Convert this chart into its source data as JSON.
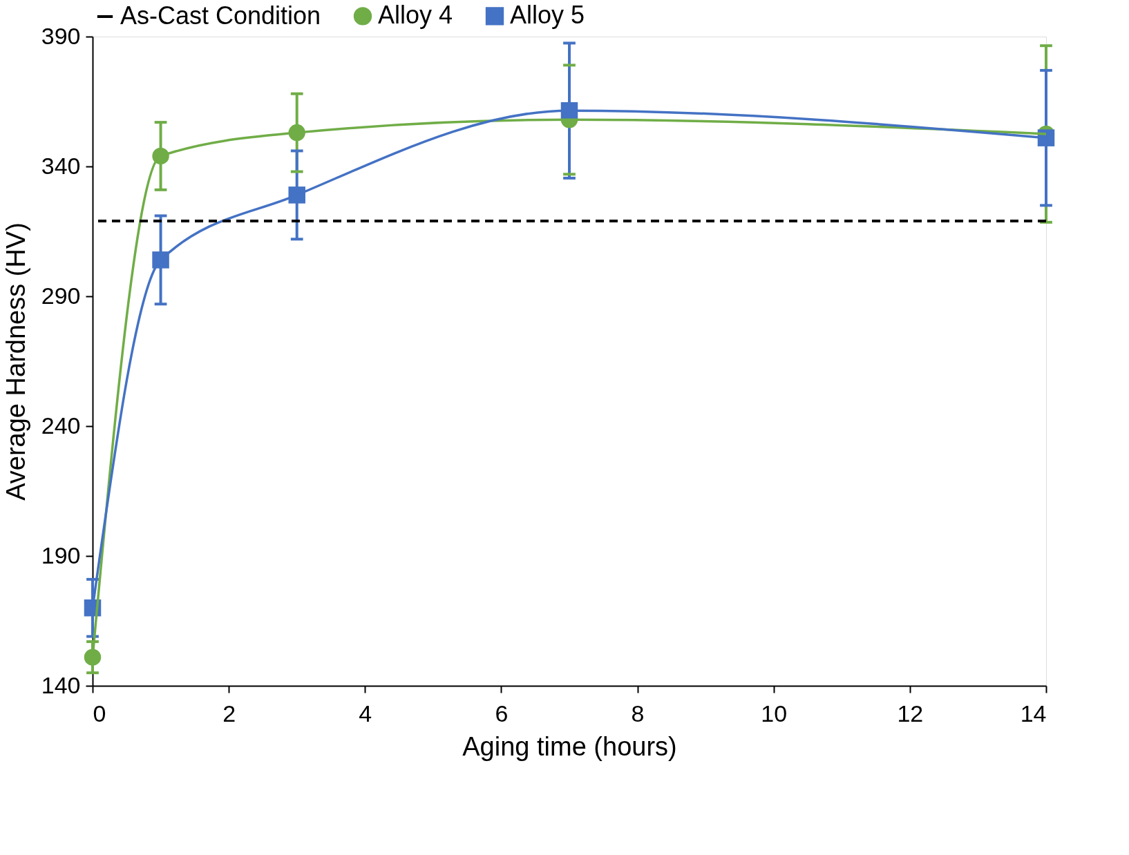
{
  "chart_data": {
    "type": "line",
    "xlabel": "Aging time (hours)",
    "ylabel": "Average Hardness (HV)",
    "x": [
      0,
      1,
      3,
      7,
      14
    ],
    "series": [
      {
        "name": "Alloy 4",
        "color": "#70ad47",
        "marker": "circle",
        "values": [
          151,
          344,
          353,
          358,
          352.5
        ],
        "errors": [
          6,
          13,
          15,
          21,
          34
        ]
      },
      {
        "name": "Alloy 5",
        "color": "#4472c4",
        "marker": "square",
        "values": [
          170,
          304,
          329,
          361.5,
          351
        ],
        "errors": [
          11,
          17,
          17,
          26,
          26
        ]
      }
    ],
    "ref_lines": [
      {
        "axis": "y",
        "value": 319,
        "label": "As-Cast Condition",
        "color": "#000000",
        "line_style": "dashed"
      }
    ],
    "xlim": [
      0,
      14
    ],
    "xticks": [
      0,
      2,
      4,
      6,
      8,
      10,
      12,
      14
    ],
    "ylim": [
      140,
      390
    ],
    "yticks": [
      140,
      190,
      240,
      290,
      340,
      390
    ],
    "grid": false,
    "legend": "top",
    "line_style": "solid"
  }
}
